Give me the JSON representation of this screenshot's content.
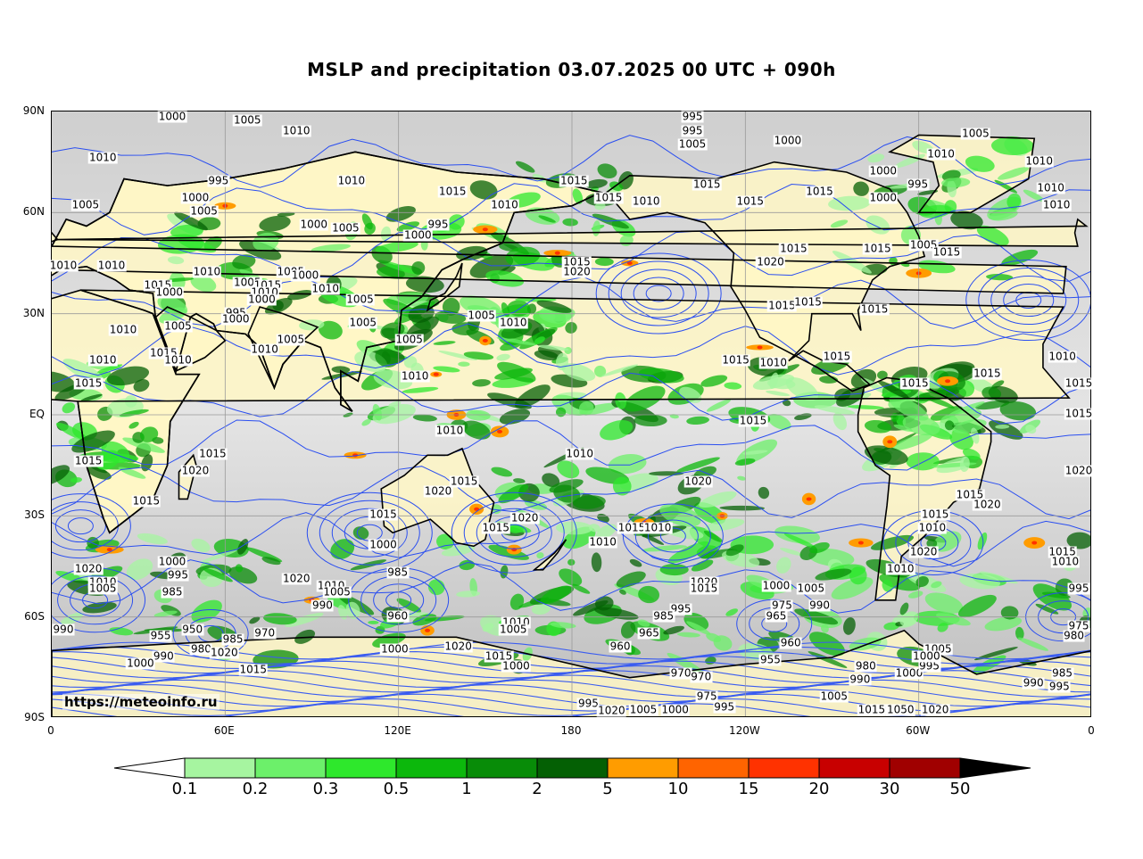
{
  "title": "MSLP and precipitation 03.07.2025 00 UTC + 090h",
  "source": "https://meteoinfo.ru",
  "lat_labels": [
    "90N",
    "60N",
    "30N",
    "EQ",
    "30S",
    "60S",
    "90S"
  ],
  "lon_labels": [
    "0",
    "60E",
    "120E",
    "180",
    "120W",
    "60W",
    "0"
  ],
  "colorbar": {
    "labels": [
      "0.1",
      "0.2",
      "0.3",
      "0.5",
      "1",
      "2",
      "5",
      "10",
      "15",
      "20",
      "30",
      "50"
    ],
    "colors": [
      "#a6f5a0",
      "#6cf06a",
      "#2ee82c",
      "#0cb80c",
      "#088c08",
      "#046004",
      "#ff9c00",
      "#ff6400",
      "#ff3200",
      "#c80000",
      "#a00000"
    ],
    "extend_low_color": "#ffffff",
    "extend_high_color": "#000000"
  },
  "isobar_labels": [
    {
      "text": "1000",
      "lon": 42,
      "lat": 89
    },
    {
      "text": "1005",
      "lon": 68,
      "lat": 87
    },
    {
      "text": "1010",
      "lon": 85,
      "lat": 84
    },
    {
      "text": "995",
      "lon": 222,
      "lat": 89
    },
    {
      "text": "995",
      "lon": 222,
      "lat": 84
    },
    {
      "text": "1005",
      "lon": 222,
      "lat": 80
    },
    {
      "text": "1000",
      "lon": 255,
      "lat": 81
    },
    {
      "text": "1005",
      "lon": 320,
      "lat": 83
    },
    {
      "text": "1010",
      "lon": 18,
      "lat": 76
    },
    {
      "text": "1010",
      "lon": 104,
      "lat": 69
    },
    {
      "text": "995",
      "lon": 58,
      "lat": 69
    },
    {
      "text": "1015",
      "lon": 139,
      "lat": 66
    },
    {
      "text": "1015",
      "lon": 181,
      "lat": 69
    },
    {
      "text": "1015",
      "lon": 193,
      "lat": 64
    },
    {
      "text": "1015",
      "lon": 227,
      "lat": 68
    },
    {
      "text": "1015",
      "lon": 266,
      "lat": 66
    },
    {
      "text": "1010",
      "lon": 308,
      "lat": 77
    },
    {
      "text": "1010",
      "lon": 342,
      "lat": 75
    },
    {
      "text": "1010",
      "lon": 346,
      "lat": 67
    },
    {
      "text": "1010",
      "lon": 348,
      "lat": 62
    },
    {
      "text": "1000",
      "lon": 288,
      "lat": 72
    },
    {
      "text": "1000",
      "lon": 288,
      "lat": 64
    },
    {
      "text": "995",
      "lon": 300,
      "lat": 68
    },
    {
      "text": "1005",
      "lon": 12,
      "lat": 62
    },
    {
      "text": "1000",
      "lon": 50,
      "lat": 64
    },
    {
      "text": "1005",
      "lon": 53,
      "lat": 60
    },
    {
      "text": "1010",
      "lon": 206,
      "lat": 63
    },
    {
      "text": "1010",
      "lon": 157,
      "lat": 62
    },
    {
      "text": "1015",
      "lon": 242,
      "lat": 63
    },
    {
      "text": "1000",
      "lon": 91,
      "lat": 56
    },
    {
      "text": "1005",
      "lon": 102,
      "lat": 55
    },
    {
      "text": "1000",
      "lon": 127,
      "lat": 53
    },
    {
      "text": "995",
      "lon": 134,
      "lat": 56
    },
    {
      "text": "1015",
      "lon": 182,
      "lat": 45
    },
    {
      "text": "1020",
      "lon": 182,
      "lat": 42
    },
    {
      "text": "1020",
      "lon": 249,
      "lat": 45
    },
    {
      "text": "1015",
      "lon": 257,
      "lat": 49
    },
    {
      "text": "1015",
      "lon": 286,
      "lat": 49
    },
    {
      "text": "1005",
      "lon": 302,
      "lat": 50
    },
    {
      "text": "1015",
      "lon": 310,
      "lat": 48
    },
    {
      "text": "1010",
      "lon": 3,
      "lat": 44
    },
    {
      "text": "1010",
      "lon": 21,
      "lat": 44
    },
    {
      "text": "1010",
      "lon": 54,
      "lat": 42
    },
    {
      "text": "1005",
      "lon": 83,
      "lat": 42
    },
    {
      "text": "1000",
      "lon": 88,
      "lat": 41
    },
    {
      "text": "1005",
      "lon": 68,
      "lat": 39
    },
    {
      "text": "1015",
      "lon": 37,
      "lat": 38
    },
    {
      "text": "1015",
      "lon": 75,
      "lat": 38
    },
    {
      "text": "1010",
      "lon": 74,
      "lat": 36
    },
    {
      "text": "1000",
      "lon": 41,
      "lat": 36
    },
    {
      "text": "1000",
      "lon": 73,
      "lat": 34
    },
    {
      "text": "1010",
      "lon": 95,
      "lat": 37
    },
    {
      "text": "1005",
      "lon": 107,
      "lat": 34
    },
    {
      "text": "995",
      "lon": 64,
      "lat": 30
    },
    {
      "text": "1000",
      "lon": 64,
      "lat": 28
    },
    {
      "text": "1005",
      "lon": 149,
      "lat": 29
    },
    {
      "text": "1010",
      "lon": 160,
      "lat": 27
    },
    {
      "text": "1015",
      "lon": 253,
      "lat": 32
    },
    {
      "text": "1015",
      "lon": 262,
      "lat": 33
    },
    {
      "text": "1015",
      "lon": 285,
      "lat": 31
    },
    {
      "text": "1010",
      "lon": 25,
      "lat": 25
    },
    {
      "text": "1005",
      "lon": 44,
      "lat": 26
    },
    {
      "text": "1005",
      "lon": 108,
      "lat": 27
    },
    {
      "text": "1005",
      "lon": 83,
      "lat": 22
    },
    {
      "text": "1005",
      "lon": 124,
      "lat": 22
    },
    {
      "text": "1010",
      "lon": 74,
      "lat": 19
    },
    {
      "text": "1010",
      "lon": 18,
      "lat": 16
    },
    {
      "text": "1015",
      "lon": 39,
      "lat": 18
    },
    {
      "text": "1010",
      "lon": 44,
      "lat": 16
    },
    {
      "text": "1015",
      "lon": 237,
      "lat": 16
    },
    {
      "text": "1010",
      "lon": 250,
      "lat": 15
    },
    {
      "text": "1015",
      "lon": 272,
      "lat": 17
    },
    {
      "text": "1010",
      "lon": 350,
      "lat": 17
    },
    {
      "text": "1010",
      "lon": 126,
      "lat": 11
    },
    {
      "text": "1015",
      "lon": 13,
      "lat": 9
    },
    {
      "text": "1015",
      "lon": 299,
      "lat": 9
    },
    {
      "text": "1015",
      "lon": 324,
      "lat": 12
    },
    {
      "text": "1015",
      "lon": 357,
      "lat": 9
    },
    {
      "text": "1015",
      "lon": 361,
      "lat": 0
    },
    {
      "text": "1015",
      "lon": 243,
      "lat": -2
    },
    {
      "text": "1010",
      "lon": 138,
      "lat": -5
    },
    {
      "text": "1010",
      "lon": 183,
      "lat": -12
    },
    {
      "text": "1015",
      "lon": 13,
      "lat": -14
    },
    {
      "text": "1015",
      "lon": 56,
      "lat": -12
    },
    {
      "text": "1020",
      "lon": 50,
      "lat": -17
    },
    {
      "text": "1020",
      "lon": 224,
      "lat": -20
    },
    {
      "text": "1020",
      "lon": 358,
      "lat": -17
    },
    {
      "text": "1015",
      "lon": 143,
      "lat": -20
    },
    {
      "text": "1020",
      "lon": 134,
      "lat": -23
    },
    {
      "text": "1015",
      "lon": 33,
      "lat": -26
    },
    {
      "text": "1015",
      "lon": 318,
      "lat": -24
    },
    {
      "text": "1020",
      "lon": 324,
      "lat": -27
    },
    {
      "text": "1015",
      "lon": 115,
      "lat": -30
    },
    {
      "text": "1015",
      "lon": 154,
      "lat": -34
    },
    {
      "text": "1020",
      "lon": 164,
      "lat": -31
    },
    {
      "text": "1015",
      "lon": 201,
      "lat": -34
    },
    {
      "text": "1010",
      "lon": 210,
      "lat": -34
    },
    {
      "text": "1010",
      "lon": 191,
      "lat": -38
    },
    {
      "text": "1015",
      "lon": 306,
      "lat": -30
    },
    {
      "text": "1010",
      "lon": 305,
      "lat": -34
    },
    {
      "text": "1000",
      "lon": 115,
      "lat": -39
    },
    {
      "text": "1020",
      "lon": 302,
      "lat": -41
    },
    {
      "text": "1015",
      "lon": 350,
      "lat": -41
    },
    {
      "text": "1010",
      "lon": 351,
      "lat": -44
    },
    {
      "text": "1010",
      "lon": 294,
      "lat": -46
    },
    {
      "text": "1020",
      "lon": 13,
      "lat": -46
    },
    {
      "text": "1000",
      "lon": 42,
      "lat": -44
    },
    {
      "text": "995",
      "lon": 44,
      "lat": -48
    },
    {
      "text": "1010",
      "lon": 18,
      "lat": -50
    },
    {
      "text": "1005",
      "lon": 18,
      "lat": -52
    },
    {
      "text": "985",
      "lon": 42,
      "lat": -53
    },
    {
      "text": "1020",
      "lon": 85,
      "lat": -49
    },
    {
      "text": "1010",
      "lon": 97,
      "lat": -51
    },
    {
      "text": "1005",
      "lon": 99,
      "lat": -53
    },
    {
      "text": "985",
      "lon": 120,
      "lat": -47
    },
    {
      "text": "990",
      "lon": 94,
      "lat": -57
    },
    {
      "text": "960",
      "lon": 120,
      "lat": -60
    },
    {
      "text": "1020",
      "lon": 226,
      "lat": -50
    },
    {
      "text": "1015",
      "lon": 226,
      "lat": -52
    },
    {
      "text": "1000",
      "lon": 251,
      "lat": -51
    },
    {
      "text": "1005",
      "lon": 263,
      "lat": -52
    },
    {
      "text": "975",
      "lon": 253,
      "lat": -57
    },
    {
      "text": "965",
      "lon": 251,
      "lat": -60
    },
    {
      "text": "990",
      "lon": 266,
      "lat": -57
    },
    {
      "text": "995",
      "lon": 362,
      "lat": -52
    },
    {
      "text": "975",
      "lon": 356,
      "lat": -63
    },
    {
      "text": "980",
      "lon": 354,
      "lat": -66
    },
    {
      "text": "995",
      "lon": 218,
      "lat": -58
    },
    {
      "text": "985",
      "lon": 212,
      "lat": -60
    },
    {
      "text": "965",
      "lon": 207,
      "lat": -65
    },
    {
      "text": "960",
      "lon": 197,
      "lat": -69
    },
    {
      "text": "1010",
      "lon": 161,
      "lat": -62
    },
    {
      "text": "1005",
      "lon": 160,
      "lat": -64
    },
    {
      "text": "950",
      "lon": 49,
      "lat": -64
    },
    {
      "text": "955",
      "lon": 38,
      "lat": -66
    },
    {
      "text": "970",
      "lon": 74,
      "lat": -65
    },
    {
      "text": "985",
      "lon": 63,
      "lat": -67
    },
    {
      "text": "980",
      "lon": 52,
      "lat": -70
    },
    {
      "text": "990",
      "lon": 39,
      "lat": -72
    },
    {
      "text": "1020",
      "lon": 60,
      "lat": -71
    },
    {
      "text": "990",
      "lon": 3,
      "lat": -64
    },
    {
      "text": "1000",
      "lon": 31,
      "lat": -74
    },
    {
      "text": "1015",
      "lon": 70,
      "lat": -76
    },
    {
      "text": "1000",
      "lon": 119,
      "lat": -70
    },
    {
      "text": "1020",
      "lon": 141,
      "lat": -69
    },
    {
      "text": "1015",
      "lon": 155,
      "lat": -72
    },
    {
      "text": "1000",
      "lon": 161,
      "lat": -75
    },
    {
      "text": "960",
      "lon": 256,
      "lat": -68
    },
    {
      "text": "955",
      "lon": 249,
      "lat": -73
    },
    {
      "text": "970",
      "lon": 218,
      "lat": -77
    },
    {
      "text": "970",
      "lon": 225,
      "lat": -78
    },
    {
      "text": "975",
      "lon": 227,
      "lat": -84
    },
    {
      "text": "995",
      "lon": 233,
      "lat": -87
    },
    {
      "text": "980",
      "lon": 282,
      "lat": -75
    },
    {
      "text": "990",
      "lon": 280,
      "lat": -79
    },
    {
      "text": "1000",
      "lon": 297,
      "lat": -77
    },
    {
      "text": "995",
      "lon": 304,
      "lat": -75
    },
    {
      "text": "1005",
      "lon": 307,
      "lat": -70
    },
    {
      "text": "1000",
      "lon": 303,
      "lat": -72
    },
    {
      "text": "1005",
      "lon": 271,
      "lat": -84
    },
    {
      "text": "985",
      "lon": 350,
      "lat": -77
    },
    {
      "text": "990",
      "lon": 340,
      "lat": -80
    },
    {
      "text": "995",
      "lon": 349,
      "lat": -81
    },
    {
      "text": "995",
      "lon": 186,
      "lat": -86
    },
    {
      "text": "1020",
      "lon": 194,
      "lat": -89
    },
    {
      "text": "1005",
      "lon": 205,
      "lat": -88
    },
    {
      "text": "1000",
      "lon": 216,
      "lat": -88
    },
    {
      "text": "1015",
      "lon": 284,
      "lat": -88
    },
    {
      "text": "1050",
      "lon": 294,
      "lat": -88
    },
    {
      "text": "1020",
      "lon": 306,
      "lat": -88
    }
  ]
}
